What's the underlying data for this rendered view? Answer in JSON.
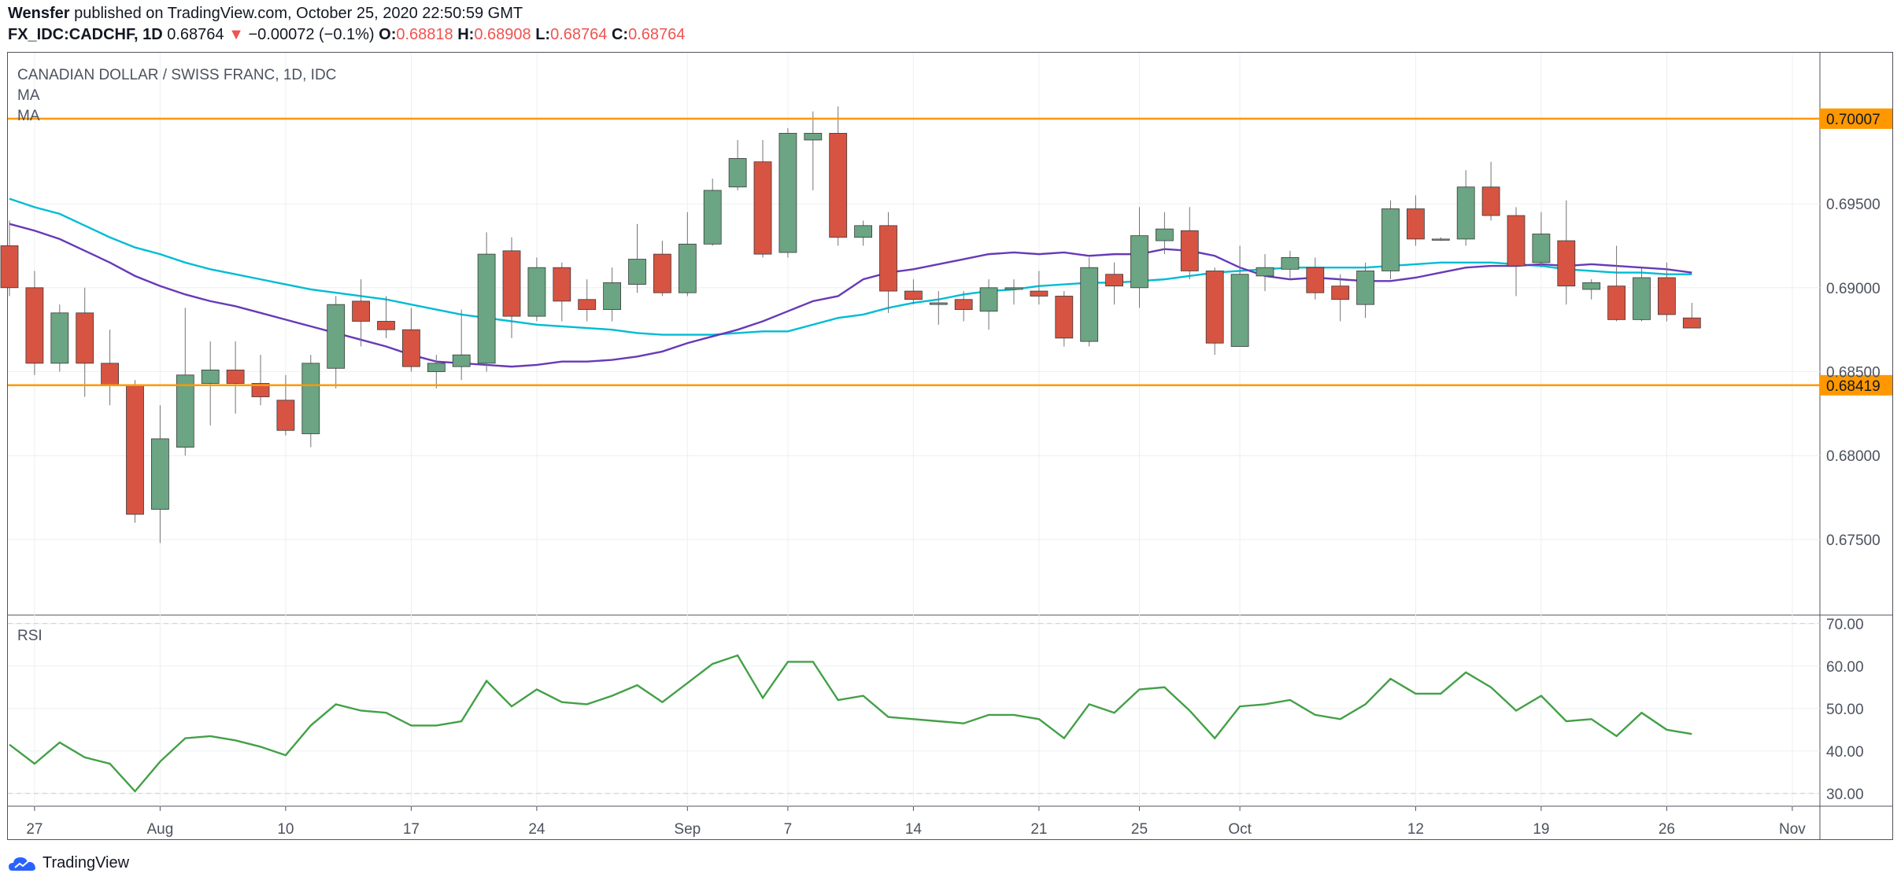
{
  "header": {
    "author": "Wensfer",
    "published": "published on TradingView.com, October 25, 2020 22:50:59 GMT",
    "symbol": "FX_IDC:CADCHF, 1D",
    "last": "0.68764",
    "change": "−0.00072 (−0.1%)",
    "o_label": "O:",
    "o": "0.68818",
    "h_label": "H:",
    "h": "0.68908",
    "l_label": "L:",
    "l": "0.68764",
    "c_label": "C:",
    "c": "0.68764"
  },
  "footer": {
    "brand": "TradingView"
  },
  "colors": {
    "up": "#6ba583",
    "down": "#d75442",
    "ma_fast": "#00bcd4",
    "ma_slow": "#673ab7",
    "level": "#ff9800",
    "rsi": "#43a047",
    "grid": "#eceff2",
    "axis_text": "#4c525e"
  },
  "chart_data": [
    {
      "type": "candlestick",
      "title": "CANADIAN DOLLAR / SWISS FRANC, 1D, IDC",
      "indicators": [
        "MA",
        "MA"
      ],
      "ylim": [
        0.6705,
        0.704
      ],
      "y_ticks": [
        "0.67500",
        "0.68000",
        "0.68500",
        "0.69000",
        "0.69500"
      ],
      "x_ticks": [
        {
          "i": 1,
          "label": "27"
        },
        {
          "i": 6,
          "label": "Aug"
        },
        {
          "i": 11,
          "label": "10"
        },
        {
          "i": 16,
          "label": "17"
        },
        {
          "i": 21,
          "label": "24"
        },
        {
          "i": 27,
          "label": "Sep"
        },
        {
          "i": 31,
          "label": "7"
        },
        {
          "i": 36,
          "label": "14"
        },
        {
          "i": 41,
          "label": "21"
        },
        {
          "i": 45,
          "label": "25"
        },
        {
          "i": 49,
          "label": "Oct"
        },
        {
          "i": 56,
          "label": "12"
        },
        {
          "i": 61,
          "label": "19"
        },
        {
          "i": 66,
          "label": "26"
        },
        {
          "i": 71,
          "label": "Nov"
        }
      ],
      "levels": [
        {
          "value": 0.70007,
          "label": "0.70007"
        },
        {
          "value": 0.68419,
          "label": "0.68419"
        }
      ],
      "candles": [
        {
          "o": 0.6925,
          "h": 0.694,
          "l": 0.6895,
          "c": 0.69
        },
        {
          "o": 0.69,
          "h": 0.691,
          "l": 0.6848,
          "c": 0.6855
        },
        {
          "o": 0.6855,
          "h": 0.689,
          "l": 0.685,
          "c": 0.6885
        },
        {
          "o": 0.6885,
          "h": 0.69,
          "l": 0.6835,
          "c": 0.6855
        },
        {
          "o": 0.6855,
          "h": 0.6875,
          "l": 0.683,
          "c": 0.6842
        },
        {
          "o": 0.6842,
          "h": 0.6845,
          "l": 0.676,
          "c": 0.6765
        },
        {
          "o": 0.6768,
          "h": 0.683,
          "l": 0.6748,
          "c": 0.681
        },
        {
          "o": 0.6805,
          "h": 0.6888,
          "l": 0.68,
          "c": 0.6848
        },
        {
          "o": 0.6843,
          "h": 0.6868,
          "l": 0.6818,
          "c": 0.6851
        },
        {
          "o": 0.6851,
          "h": 0.6868,
          "l": 0.6825,
          "c": 0.6843
        },
        {
          "o": 0.6843,
          "h": 0.686,
          "l": 0.683,
          "c": 0.6835
        },
        {
          "o": 0.6833,
          "h": 0.6848,
          "l": 0.6812,
          "c": 0.6815
        },
        {
          "o": 0.6813,
          "h": 0.686,
          "l": 0.6805,
          "c": 0.6855
        },
        {
          "o": 0.6852,
          "h": 0.6895,
          "l": 0.684,
          "c": 0.689
        },
        {
          "o": 0.6892,
          "h": 0.6905,
          "l": 0.6865,
          "c": 0.688
        },
        {
          "o": 0.688,
          "h": 0.6895,
          "l": 0.687,
          "c": 0.6875
        },
        {
          "o": 0.6875,
          "h": 0.6888,
          "l": 0.685,
          "c": 0.6853
        },
        {
          "o": 0.685,
          "h": 0.686,
          "l": 0.684,
          "c": 0.6855
        },
        {
          "o": 0.6853,
          "h": 0.6887,
          "l": 0.6845,
          "c": 0.686
        },
        {
          "o": 0.6855,
          "h": 0.6933,
          "l": 0.685,
          "c": 0.692
        },
        {
          "o": 0.6922,
          "h": 0.693,
          "l": 0.687,
          "c": 0.6883
        },
        {
          "o": 0.6883,
          "h": 0.6918,
          "l": 0.688,
          "c": 0.6912
        },
        {
          "o": 0.6912,
          "h": 0.6915,
          "l": 0.688,
          "c": 0.6892
        },
        {
          "o": 0.6893,
          "h": 0.6905,
          "l": 0.688,
          "c": 0.6887
        },
        {
          "o": 0.6887,
          "h": 0.6912,
          "l": 0.688,
          "c": 0.6903
        },
        {
          "o": 0.6902,
          "h": 0.6938,
          "l": 0.6897,
          "c": 0.6917
        },
        {
          "o": 0.692,
          "h": 0.6928,
          "l": 0.6895,
          "c": 0.6897
        },
        {
          "o": 0.6897,
          "h": 0.6945,
          "l": 0.6895,
          "c": 0.6926
        },
        {
          "o": 0.6926,
          "h": 0.6965,
          "l": 0.6925,
          "c": 0.6958
        },
        {
          "o": 0.696,
          "h": 0.6988,
          "l": 0.6958,
          "c": 0.6977
        },
        {
          "o": 0.6975,
          "h": 0.6988,
          "l": 0.6918,
          "c": 0.692
        },
        {
          "o": 0.6921,
          "h": 0.6995,
          "l": 0.6918,
          "c": 0.6992
        },
        {
          "o": 0.6988,
          "h": 0.7005,
          "l": 0.6958,
          "c": 0.6992
        },
        {
          "o": 0.6992,
          "h": 0.7008,
          "l": 0.6925,
          "c": 0.693
        },
        {
          "o": 0.693,
          "h": 0.694,
          "l": 0.6925,
          "c": 0.6937
        },
        {
          "o": 0.6937,
          "h": 0.6945,
          "l": 0.6885,
          "c": 0.6898
        },
        {
          "o": 0.6898,
          "h": 0.6905,
          "l": 0.689,
          "c": 0.6893
        },
        {
          "o": 0.689,
          "h": 0.6898,
          "l": 0.6878,
          "c": 0.6891
        },
        {
          "o": 0.6893,
          "h": 0.6898,
          "l": 0.688,
          "c": 0.6887
        },
        {
          "o": 0.6886,
          "h": 0.6905,
          "l": 0.6875,
          "c": 0.69
        },
        {
          "o": 0.6899,
          "h": 0.6905,
          "l": 0.689,
          "c": 0.69
        },
        {
          "o": 0.6898,
          "h": 0.691,
          "l": 0.689,
          "c": 0.6895
        },
        {
          "o": 0.6895,
          "h": 0.6898,
          "l": 0.6865,
          "c": 0.687
        },
        {
          "o": 0.6868,
          "h": 0.6918,
          "l": 0.6865,
          "c": 0.6912
        },
        {
          "o": 0.6908,
          "h": 0.6915,
          "l": 0.689,
          "c": 0.6901
        },
        {
          "o": 0.69,
          "h": 0.6948,
          "l": 0.6888,
          "c": 0.6931
        },
        {
          "o": 0.6928,
          "h": 0.6945,
          "l": 0.692,
          "c": 0.6935
        },
        {
          "o": 0.6934,
          "h": 0.6948,
          "l": 0.6905,
          "c": 0.691
        },
        {
          "o": 0.691,
          "h": 0.6912,
          "l": 0.686,
          "c": 0.6867
        },
        {
          "o": 0.6865,
          "h": 0.6925,
          "l": 0.6865,
          "c": 0.6908
        },
        {
          "o": 0.6907,
          "h": 0.692,
          "l": 0.6898,
          "c": 0.6912
        },
        {
          "o": 0.6911,
          "h": 0.6922,
          "l": 0.6905,
          "c": 0.6918
        },
        {
          "o": 0.6912,
          "h": 0.6918,
          "l": 0.6893,
          "c": 0.6897
        },
        {
          "o": 0.6901,
          "h": 0.6908,
          "l": 0.688,
          "c": 0.6893
        },
        {
          "o": 0.689,
          "h": 0.6915,
          "l": 0.6882,
          "c": 0.691
        },
        {
          "o": 0.691,
          "h": 0.6952,
          "l": 0.6905,
          "c": 0.6947
        },
        {
          "o": 0.6947,
          "h": 0.6955,
          "l": 0.6925,
          "c": 0.6929
        },
        {
          "o": 0.6929,
          "h": 0.693,
          "l": 0.6928,
          "c": 0.6929
        },
        {
          "o": 0.6929,
          "h": 0.697,
          "l": 0.6925,
          "c": 0.696
        },
        {
          "o": 0.696,
          "h": 0.6975,
          "l": 0.694,
          "c": 0.6943
        },
        {
          "o": 0.6943,
          "h": 0.6948,
          "l": 0.6895,
          "c": 0.6913
        },
        {
          "o": 0.6915,
          "h": 0.6945,
          "l": 0.6912,
          "c": 0.6932
        },
        {
          "o": 0.6928,
          "h": 0.6952,
          "l": 0.689,
          "c": 0.6901
        },
        {
          "o": 0.6899,
          "h": 0.6905,
          "l": 0.6893,
          "c": 0.6903
        },
        {
          "o": 0.6901,
          "h": 0.6925,
          "l": 0.688,
          "c": 0.6881
        },
        {
          "o": 0.6881,
          "h": 0.6912,
          "l": 0.688,
          "c": 0.6906
        },
        {
          "o": 0.6906,
          "h": 0.6915,
          "l": 0.688,
          "c": 0.6884
        },
        {
          "o": 0.6882,
          "h": 0.6891,
          "l": 0.6876,
          "c": 0.6876
        }
      ],
      "series": [
        {
          "name": "MA",
          "color": "#00bcd4",
          "values": [
            0.6953,
            0.6948,
            0.6944,
            0.6937,
            0.693,
            0.6924,
            0.692,
            0.6915,
            0.6911,
            0.6908,
            0.6905,
            0.6902,
            0.6899,
            0.6897,
            0.6895,
            0.6893,
            0.689,
            0.6887,
            0.6884,
            0.6882,
            0.688,
            0.6878,
            0.6877,
            0.6876,
            0.6875,
            0.6873,
            0.6872,
            0.6872,
            0.6872,
            0.6873,
            0.6874,
            0.6874,
            0.6878,
            0.6882,
            0.6884,
            0.6888,
            0.6891,
            0.6893,
            0.6896,
            0.6898,
            0.6899,
            0.6901,
            0.6902,
            0.6903,
            0.6903,
            0.6904,
            0.6905,
            0.6907,
            0.6909,
            0.691,
            0.6911,
            0.6912,
            0.6912,
            0.6912,
            0.6912,
            0.6913,
            0.6914,
            0.6915,
            0.6915,
            0.6915,
            0.6914,
            0.6913,
            0.6911,
            0.691,
            0.6909,
            0.6909,
            0.6908,
            0.6908
          ]
        },
        {
          "name": "MA",
          "color": "#673ab7",
          "values": [
            0.6938,
            0.6934,
            0.6929,
            0.6922,
            0.6915,
            0.6907,
            0.6901,
            0.6896,
            0.6892,
            0.6889,
            0.6885,
            0.6881,
            0.6877,
            0.6873,
            0.6869,
            0.6865,
            0.686,
            0.6856,
            0.6855,
            0.6854,
            0.6853,
            0.6854,
            0.6856,
            0.6856,
            0.6857,
            0.6859,
            0.6862,
            0.6867,
            0.6871,
            0.6875,
            0.688,
            0.6886,
            0.6892,
            0.6895,
            0.6905,
            0.6909,
            0.6911,
            0.6914,
            0.6917,
            0.692,
            0.6921,
            0.692,
            0.6921,
            0.6919,
            0.692,
            0.692,
            0.6923,
            0.6922,
            0.6919,
            0.6912,
            0.6907,
            0.6905,
            0.6906,
            0.6905,
            0.6904,
            0.6904,
            0.6906,
            0.6909,
            0.6912,
            0.6913,
            0.6913,
            0.6914,
            0.6913,
            0.6914,
            0.6913,
            0.6912,
            0.6911,
            0.6909
          ]
        }
      ]
    },
    {
      "type": "line",
      "title": "RSI",
      "ylim": [
        27,
        72
      ],
      "y_ticks": [
        "30.00",
        "40.00",
        "50.00",
        "60.00",
        "70.00"
      ],
      "dashed_bands": [
        30,
        70
      ],
      "series": [
        {
          "name": "RSI",
          "color": "#43a047",
          "values": [
            41.5,
            37,
            42,
            38.5,
            37,
            30.5,
            37.5,
            43,
            43.5,
            42.5,
            41,
            39,
            46,
            51,
            49.5,
            49,
            46,
            46,
            47,
            56.5,
            50.5,
            54.5,
            51.5,
            51,
            53,
            55.5,
            51.5,
            56,
            60.5,
            62.5,
            52.5,
            61,
            61,
            52,
            53,
            48,
            47.5,
            47,
            46.5,
            48.5,
            48.5,
            47.5,
            43,
            51,
            49,
            54.5,
            55,
            49.5,
            43,
            50.5,
            51,
            52,
            48.5,
            47.5,
            51,
            57,
            53.5,
            53.5,
            58.5,
            55,
            49.5,
            53,
            47,
            47.5,
            43.5,
            49,
            45,
            44
          ]
        }
      ]
    }
  ]
}
